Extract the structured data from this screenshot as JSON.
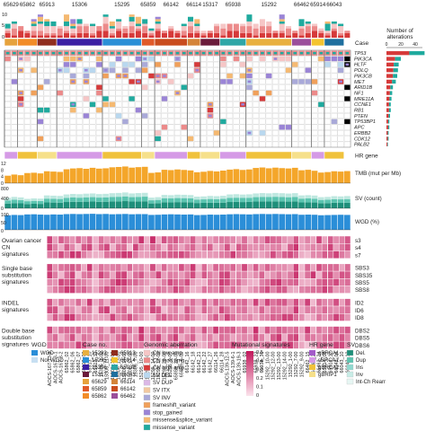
{
  "chart_data": {
    "type": "heatmap",
    "case_labels": [
      "65629",
      "65862",
      "65913",
      "15306",
      "15295",
      "65859",
      "66142",
      "66114",
      "15317",
      "65938",
      "15292",
      "66462",
      "65914",
      "66043"
    ],
    "case_colors": [
      "#e6a23c",
      "#f28c28",
      "#8f2d1e",
      "#3b1fa3",
      "#2a8fd6",
      "#e05a2a",
      "#c94c1e",
      "#d4843a",
      "#6a1b3a",
      "#2ea6a6",
      "#e8b040",
      "#9b4f9b",
      "#f4c430",
      "#1e6f9e"
    ],
    "case_sample_counts": [
      2,
      3,
      3,
      7,
      6,
      2,
      5,
      2,
      3,
      4,
      7,
      3,
      2,
      3
    ],
    "sample_labels": [
      "AOCS-167-13-9",
      "AOCS-167-3-1",
      "AOCS-167-3-2",
      "65862_02",
      "65862_06",
      "65862_07",
      "65913_08",
      "65913_10",
      "65913_12",
      "15306_1-00",
      "15306_11-00",
      "15306_12-00",
      "15306_13-00",
      "15306_14-00",
      "15306_17-00",
      "15306_7-00",
      "15295_10-00",
      "15295_11-00",
      "15295_14-00",
      "15295_17-00",
      "15295_20-00",
      "15295_9-00",
      "65859_20-00",
      "65859_6-00",
      "66142_16",
      "66142_18",
      "66142_21",
      "66142_22",
      "66142_27",
      "66114_26",
      "66114_28",
      "AOCS-139-12-5",
      "AOCS-139-6-1",
      "AOCS-139-19-3",
      "65938_02",
      "65938_21",
      "65938_22",
      "65938_36",
      "15292_10-00",
      "15292_12-00",
      "15292_13-00",
      "15292_14-00",
      "15292_1-00",
      "15292_7-00",
      "15292_9-00",
      "66462_15",
      "66462_20",
      "66462_24",
      "65914_08",
      "65914_12",
      "66043_04",
      "66043_10",
      "66043_12"
    ],
    "genes": [
      "TP53",
      "PIK3CA",
      "HLTF",
      "POLQ",
      "PIK3CB",
      "MET",
      "ARID1B",
      "NF1",
      "MRE11A",
      "CCNE1",
      "RB1",
      "PTEN",
      "TP53BP1",
      "APC",
      "ERBB2",
      "CDK12",
      "PALB2"
    ],
    "gene_alteration_counts": [
      53,
      20,
      17,
      16,
      15,
      13,
      9,
      8,
      7,
      6,
      6,
      5,
      4,
      4,
      3,
      3,
      2
    ],
    "row_labels": {
      "case": "Case",
      "hr_gene": "HR gene",
      "tmb": "TMB (mut per Mb)",
      "sv": "SV (count)",
      "wgd": "WGD (%)",
      "ovarian_group": "Ovarian cancer CN signatures",
      "ovarian_rows": [
        "s3",
        "s4",
        "s7"
      ],
      "sbs_group": "Single base substitution signatures",
      "sbs_rows": [
        "SBS3",
        "SBS35",
        "SBS5",
        "SBS8"
      ],
      "indel_group": "INDEL signatures",
      "indel_rows": [
        "ID2",
        "ID6",
        "ID8"
      ],
      "dbs_group": "Double base substitution signatures",
      "dbs_rows": [
        "DBS2",
        "DBS5",
        "DBS6"
      ]
    },
    "tmb_ticks": [
      "12",
      "8",
      "4",
      "0"
    ],
    "sv_ticks": [
      "800",
      "400",
      "0"
    ],
    "wgd_ticks": [
      "100",
      "50",
      "0"
    ],
    "top_bar_ticks": [
      "10",
      "5",
      "0"
    ],
    "right_bar_title": "Number of alterations",
    "right_bar_ticks": [
      "0",
      "20",
      "40"
    ],
    "tmb_values": [
      4.5,
      5.2,
      4.8,
      6.1,
      6.3,
      5.9,
      7.2,
      7.0,
      6.8,
      8.4,
      8.9,
      9.1,
      8.7,
      9.3,
      8.8,
      9.0,
      9.6,
      9.8,
      10.1,
      9.4,
      9.7,
      9.9,
      6.2,
      6.5,
      8.1,
      7.9,
      8.3,
      8.0,
      7.7,
      6.6,
      6.9,
      7.4,
      7.1,
      7.6,
      8.2,
      8.5,
      8.0,
      8.3,
      9.2,
      9.5,
      9.0,
      9.4,
      9.1,
      8.9,
      9.3,
      7.8,
      8.1,
      7.5,
      6.4,
      6.7,
      7.2,
      7.0,
      7.3
    ],
    "sv_values": [
      420,
      460,
      440,
      380,
      400,
      390,
      520,
      510,
      500,
      560,
      580,
      570,
      590,
      600,
      575,
      585,
      610,
      620,
      640,
      600,
      615,
      625,
      430,
      450,
      540,
      530,
      550,
      545,
      535,
      470,
      480,
      500,
      490,
      505,
      560,
      570,
      555,
      565,
      600,
      615,
      605,
      620,
      610,
      595,
      612,
      520,
      530,
      515,
      450,
      460,
      490,
      480,
      495
    ],
    "wgd_values": [
      90,
      92,
      91,
      95,
      96,
      94,
      93,
      95,
      94,
      97,
      98,
      97,
      98,
      99,
      97,
      98,
      96,
      97,
      98,
      96,
      97,
      97,
      92,
      93,
      95,
      96,
      95,
      94,
      95,
      91,
      92,
      94,
      93,
      94,
      96,
      97,
      96,
      95,
      97,
      98,
      97,
      98,
      97,
      96,
      97,
      93,
      94,
      93,
      90,
      91,
      92,
      93,
      92
    ],
    "legend": {
      "wgd_title": "WGD",
      "wgd_items": [
        {
          "label": "WGD",
          "color": "#2b8ed8"
        },
        {
          "label": "Not WGD",
          "color": "#c7dff2"
        }
      ],
      "case_title": "Case no.",
      "case_col1": [
        "15292",
        "15295",
        "15306",
        "15317",
        "65629",
        "65859",
        "65862"
      ],
      "case_col2": [
        "65913",
        "65914",
        "65938",
        "66043",
        "66114",
        "66142",
        "66462"
      ],
      "genomic_title": "Genomic aberration",
      "genomic_items": [
        {
          "label": "CN low amp.",
          "color": "#f6c6c6"
        },
        {
          "label": "CN mod amp.",
          "color": "#ec8a8a"
        },
        {
          "label": "CN high amp.",
          "color": "#d63a3a"
        },
        {
          "label": "SV DEL",
          "color": "#b9d8ef"
        },
        {
          "label": "SV DUP",
          "color": "#dbb8e6"
        },
        {
          "label": "SV ITX",
          "color": "#f2c9a0"
        },
        {
          "label": "SV INV",
          "color": "#a9a9d9"
        },
        {
          "label": "frameshift_variant",
          "color": "#f0a05a"
        },
        {
          "label": "stop_gained",
          "color": "#9a84d6"
        },
        {
          "label": "missense&splice_variant",
          "color": "#f5b971"
        },
        {
          "label": "missense_variant",
          "color": "#1faa9e"
        }
      ],
      "mutsig_title": "Mutational signatures",
      "mutsig_ticks": [
        "0.5",
        "0.4",
        "0.3",
        "0.2",
        "0.1",
        "0"
      ],
      "hr_title": "HR gene",
      "hr_items": [
        {
          "label": "gBRCA1",
          "color": "#a35bc9"
        },
        {
          "label": "sBRCA1",
          "color": "#d59ae6"
        },
        {
          "label": "gBRCA2",
          "color": "#f0c23c"
        },
        {
          "label": "gBRIP1",
          "color": "#f6e08a"
        }
      ],
      "sv_title": "SV",
      "sv_items": [
        {
          "label": "Del.",
          "color": "#1e8f7a"
        },
        {
          "label": "Dup",
          "color": "#5cc4b0"
        },
        {
          "label": "Ins",
          "color": "#8fd9cf"
        },
        {
          "label": "Inv",
          "color": "#c8ece6"
        },
        {
          "label": "Int-Ch Rearr",
          "color": "#e6f6f3"
        }
      ]
    },
    "colors": {
      "tmb": "#f4a62a",
      "wgd": "#2b8ed8",
      "sv_dark": "#1e8f7a",
      "sv_mid": "#5cc4b0",
      "sv_light": "#bfe8e0",
      "cell": "#ffffff",
      "heat_low": "#fbe3ec",
      "heat_high": "#c2185b"
    }
  }
}
